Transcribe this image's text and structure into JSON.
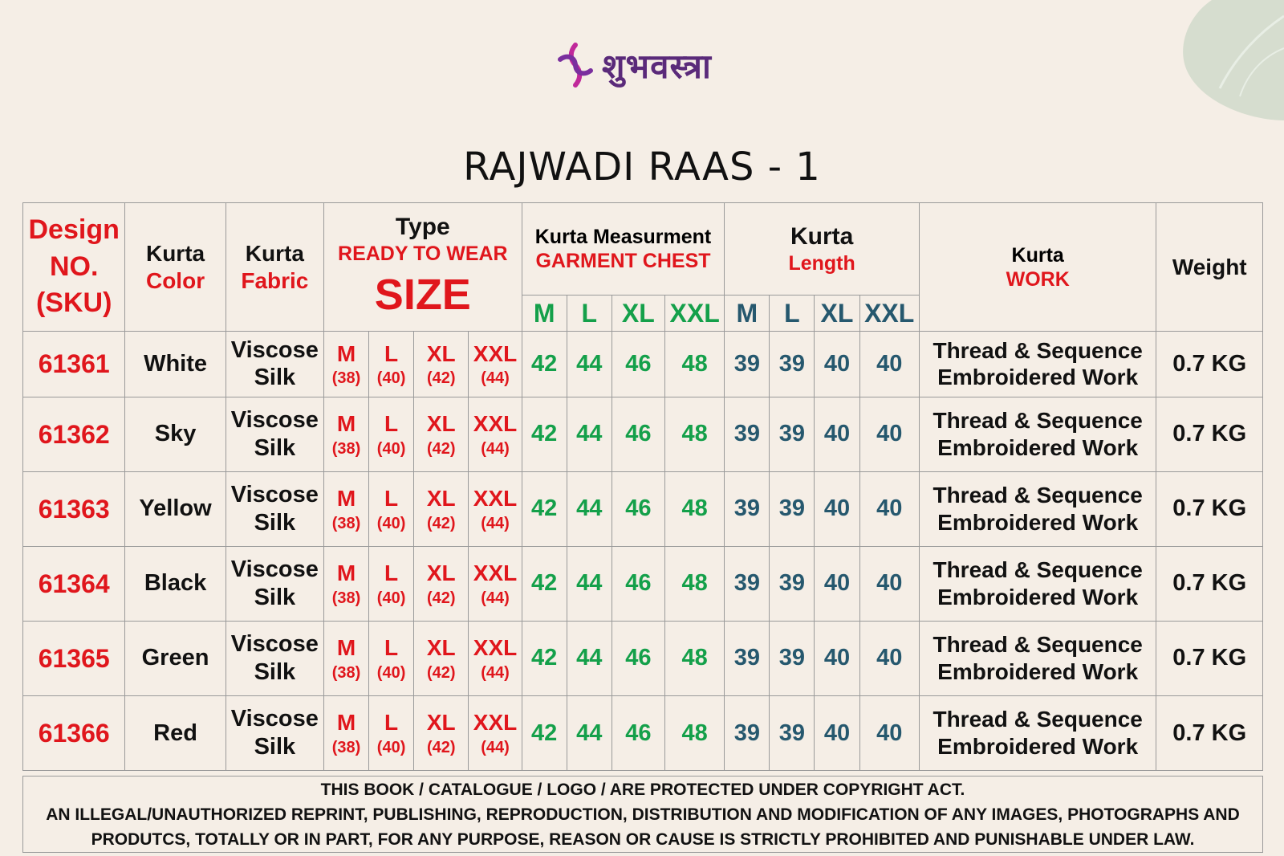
{
  "brand": {
    "logo_text": "शुभवस्त्रा"
  },
  "title": "RAJWADI RAAS - 1",
  "header": {
    "design": [
      "Design",
      "NO.",
      "(SKU)"
    ],
    "color": [
      "Kurta",
      "Color"
    ],
    "fabric": [
      "Kurta",
      "Fabric"
    ],
    "type": {
      "line1": "Type",
      "line2": "READY TO WEAR",
      "line3": "SIZE"
    },
    "chest": {
      "line1": "Kurta Measurment",
      "line2": "GARMENT CHEST",
      "sizes": [
        "M",
        "L",
        "XL",
        "XXL"
      ]
    },
    "length": {
      "line1": "Kurta",
      "line2": "Length",
      "sizes": [
        "M",
        "L",
        "XL",
        "XXL"
      ]
    },
    "work": [
      "Kurta",
      "WORK"
    ],
    "weight": "Weight"
  },
  "type_sizes": [
    {
      "size": "M",
      "num": "(38)"
    },
    {
      "size": "L",
      "num": "(40)"
    },
    {
      "size": "XL",
      "num": "(42)"
    },
    {
      "size": "XXL",
      "num": "(44)"
    }
  ],
  "rows": [
    {
      "sku": "61361",
      "color": "White",
      "fabric": [
        "Viscose",
        "Silk"
      ],
      "chest": [
        "42",
        "44",
        "46",
        "48"
      ],
      "length": [
        "39",
        "39",
        "40",
        "40"
      ],
      "work": [
        "Thread & Sequence",
        "Embroidered Work"
      ],
      "weight": "0.7 KG"
    },
    {
      "sku": "61362",
      "color": "Sky",
      "fabric": [
        "Viscose",
        "Silk"
      ],
      "chest": [
        "42",
        "44",
        "46",
        "48"
      ],
      "length": [
        "39",
        "39",
        "40",
        "40"
      ],
      "work": [
        "Thread & Sequence",
        "Embroidered Work"
      ],
      "weight": "0.7 KG"
    },
    {
      "sku": "61363",
      "color": "Yellow",
      "fabric": [
        "Viscose",
        "Silk"
      ],
      "chest": [
        "42",
        "44",
        "46",
        "48"
      ],
      "length": [
        "39",
        "39",
        "40",
        "40"
      ],
      "work": [
        "Thread & Sequence",
        "Embroidered Work"
      ],
      "weight": "0.7 KG"
    },
    {
      "sku": "61364",
      "color": "Black",
      "fabric": [
        "Viscose",
        "Silk"
      ],
      "chest": [
        "42",
        "44",
        "46",
        "48"
      ],
      "length": [
        "39",
        "39",
        "40",
        "40"
      ],
      "work": [
        "Thread & Sequence",
        "Embroidered Work"
      ],
      "weight": "0.7 KG"
    },
    {
      "sku": "61365",
      "color": "Green",
      "fabric": [
        "Viscose",
        "Silk"
      ],
      "chest": [
        "42",
        "44",
        "46",
        "48"
      ],
      "length": [
        "39",
        "39",
        "40",
        "40"
      ],
      "work": [
        "Thread & Sequence",
        "Embroidered Work"
      ],
      "weight": "0.7 KG"
    },
    {
      "sku": "61366",
      "color": "Red",
      "fabric": [
        "Viscose",
        "Silk"
      ],
      "chest": [
        "42",
        "44",
        "46",
        "48"
      ],
      "length": [
        "39",
        "39",
        "40",
        "40"
      ],
      "work": [
        "Thread & Sequence",
        "Embroidered Work"
      ],
      "weight": "0.7 KG"
    }
  ],
  "notice": [
    "THIS BOOK / CATALOGUE  / LOGO / ARE  PROTECTED UNDER COPYRIGHT ACT.",
    "AN ILLEGAL/UNAUTHORIZED REPRINT, PUBLISHING, REPRODUCTION, DISTRIBUTION AND MODIFICATION OF ANY IMAGES, PHOTOGRAPHS AND",
    "PRODUTCS,    TOTALLY OR IN PART, FOR ANY PURPOSE, REASON OR CAUSE IS STRICTLY PROHIBITED AND PUNISHABLE UNDER LAW."
  ],
  "colors": {
    "background": "#f5eee6",
    "red": "#e0161c",
    "green": "#14a04a",
    "teal": "#26586e",
    "logo": "#5a2a7a"
  }
}
